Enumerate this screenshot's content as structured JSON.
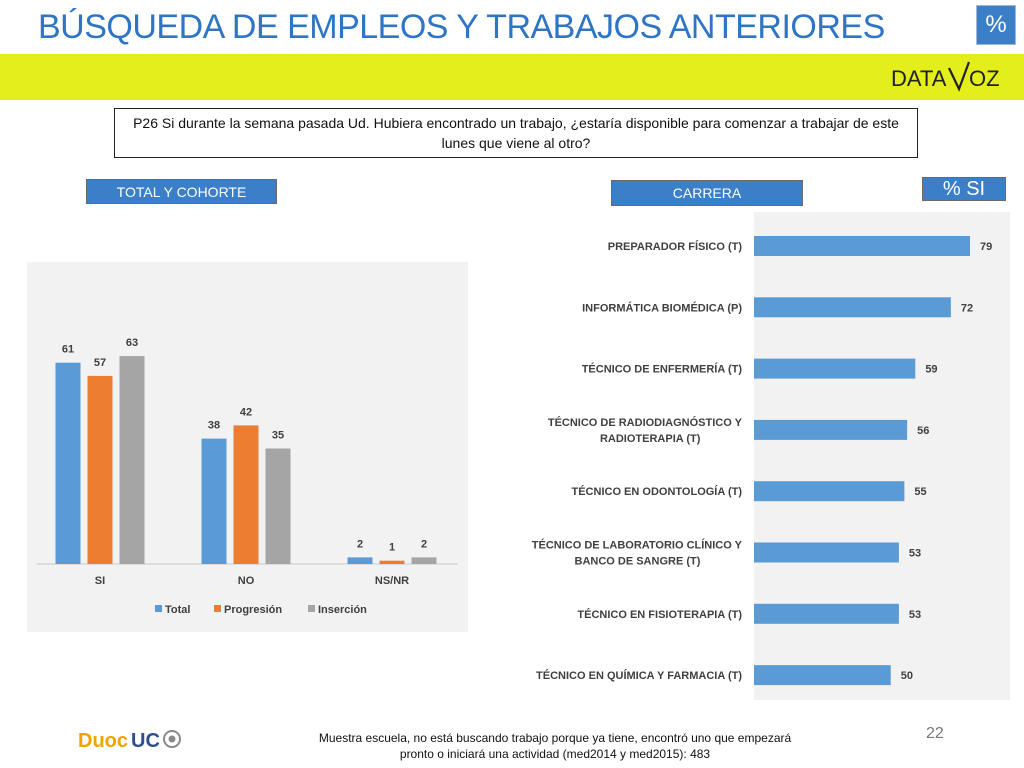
{
  "header": {
    "title": "BÚSQUEDA DE EMPLEOS Y TRABAJOS ANTERIORES",
    "badge": "%",
    "logo_left": "DATA",
    "logo_right": "OZ"
  },
  "question": "P26 Si durante la semana pasada Ud. Hubiera encontrado un trabajo, ¿estaría disponible para comenzar a trabajar de este lunes que viene al otro?",
  "tags": {
    "total": "TOTAL Y COHORTE",
    "carrera": "CARRERA",
    "si": "% SI"
  },
  "colors": {
    "accent_blue": "#3a7fc8",
    "bar_blue": "#5b9bd5",
    "bar_orange": "#ed7d31",
    "bar_gray": "#a5a5a5",
    "band_yellow": "#e3ee1b"
  },
  "chart_data": [
    {
      "type": "bar",
      "categories": [
        "SI",
        "NO",
        "NS/NR"
      ],
      "series": [
        {
          "name": "Total",
          "values": [
            61,
            38,
            2
          ],
          "color": "#5b9bd5"
        },
        {
          "name": "Progresión",
          "values": [
            57,
            42,
            1
          ],
          "color": "#ed7d31"
        },
        {
          "name": "Inserción",
          "values": [
            63,
            35,
            2
          ],
          "color": "#a5a5a5"
        }
      ],
      "ylim": [
        0,
        80
      ],
      "legend": "bottom",
      "grid": false
    },
    {
      "type": "bar",
      "orientation": "horizontal",
      "categories": [
        "PREPARADOR FÍSICO (T)",
        "INFORMÁTICA BIOMÉDICA (P)",
        "TÉCNICO DE ENFERMERÍA (T)",
        "TÉCNICO DE RADIODIAGNÓSTICO Y RADIOTERAPIA (T)",
        "TÉCNICO EN ODONTOLOGÍA (T)",
        "TÉCNICO DE LABORATORIO CLÍNICO Y BANCO DE SANGRE (T)",
        "TÉCNICO EN FISIOTERAPIA (T)",
        "TÉCNICO EN QUÍMICA Y FARMACIA (T)"
      ],
      "values": [
        79,
        72,
        59,
        56,
        55,
        53,
        53,
        50
      ],
      "xlim": [
        0,
        100
      ],
      "grid": false
    }
  ],
  "footer": {
    "note_line1": "Muestra escuela, no está buscando trabajo porque ya tiene, encontró uno que empezará",
    "note_line2": "pronto o iniciará una actividad (med2014 y med2015): 483",
    "page_number": "22",
    "brand_a": "Duoc",
    "brand_b": "UC"
  }
}
